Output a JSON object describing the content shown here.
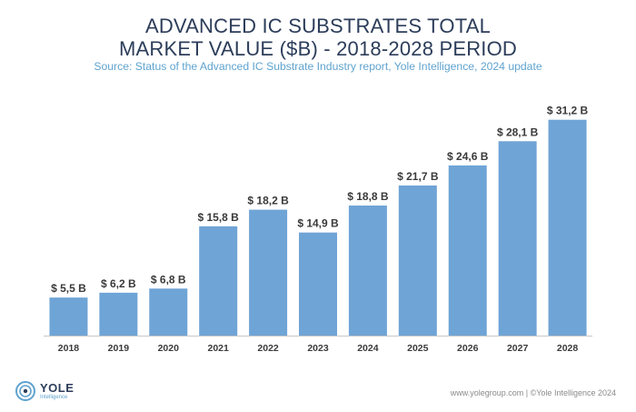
{
  "chart_data": {
    "type": "bar",
    "title_lines": [
      "ADVANCED IC SUBSTRATES TOTAL",
      "MARKET VALUE ($B) - 2018-2028 PERIOD"
    ],
    "subtitle": "Source: Status of the Advanced IC Substrate Industry report, Yole Intelligence, 2024 update",
    "categories": [
      "2018",
      "2019",
      "2020",
      "2021",
      "2022",
      "2023",
      "2024",
      "2025",
      "2026",
      "2027",
      "2028"
    ],
    "values": [
      5.5,
      6.2,
      6.8,
      15.8,
      18.2,
      14.9,
      18.8,
      21.7,
      24.6,
      28.1,
      31.2
    ],
    "value_labels": [
      "$ 5,5 B",
      "$ 6,2 B",
      "$ 6,8 B",
      "$ 15,8 B",
      "$ 18,2 B",
      "$ 14,9 B",
      "$ 18,8 B",
      "$ 21,7 B",
      "$ 24,6 B",
      "$ 28,1 B",
      "$ 31,2 B"
    ],
    "xlabel": "",
    "ylabel": "",
    "ylim": [
      0,
      33
    ],
    "bar_color": "#6fa4d6",
    "grid": false
  },
  "footer": {
    "logo_brand": "YOLE",
    "logo_sub": "Intelligence",
    "credit": "www.yolegroup.com | ©Yole Intelligence 2024"
  },
  "colors": {
    "title": "#2c3d5a",
    "subtitle": "#5fa3cf",
    "label": "#3a3a3a",
    "axis": "#c8c8c8"
  }
}
